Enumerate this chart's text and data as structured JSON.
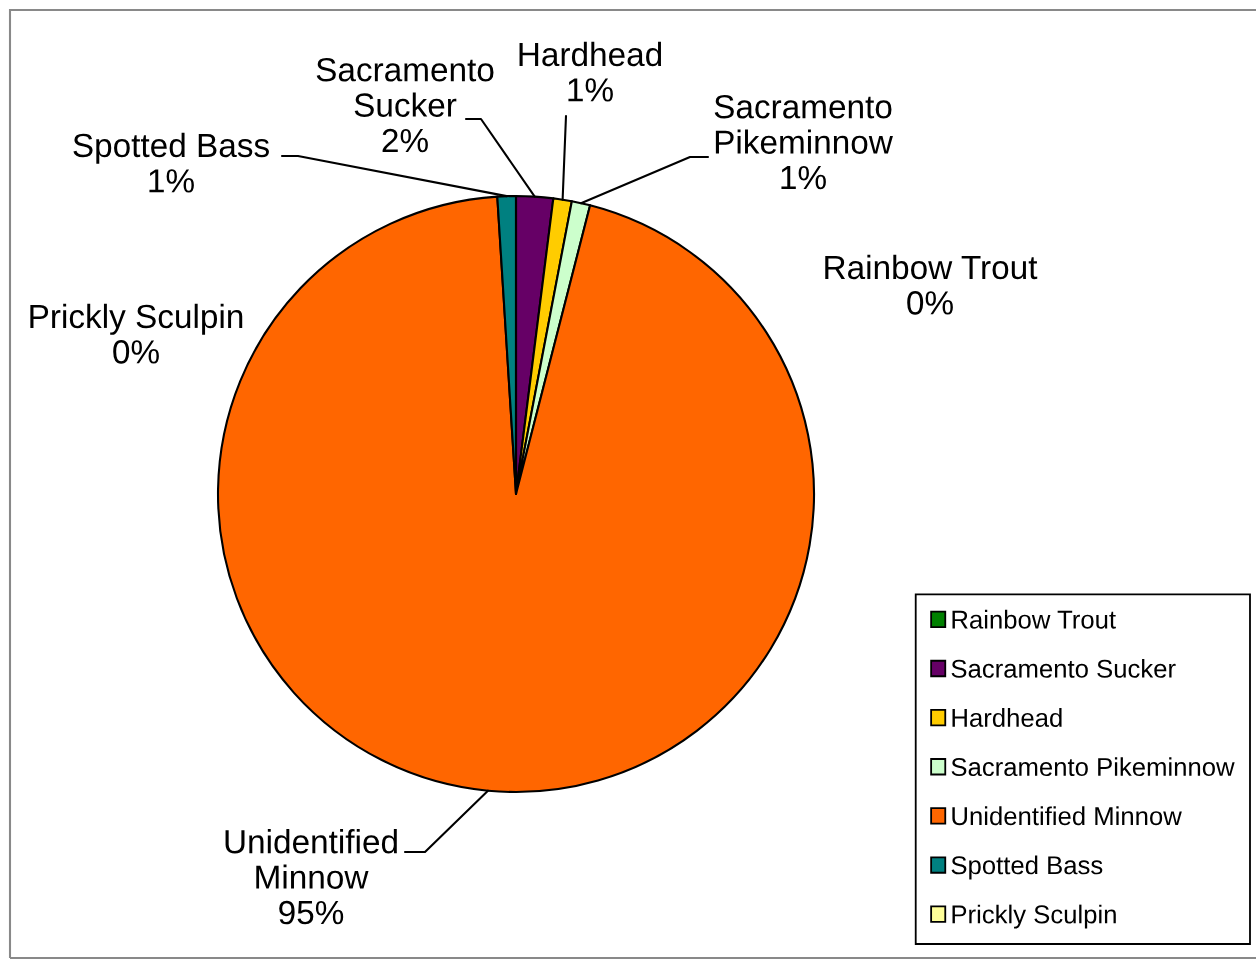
{
  "chart_data": {
    "type": "pie",
    "categories": [
      "Rainbow Trout",
      "Sacramento Sucker",
      "Hardhead",
      "Sacramento Pikeminnow",
      "Unidentified Minnow",
      "Spotted Bass",
      "Prickly Sculpin"
    ],
    "values": [
      0,
      2,
      1,
      1,
      95,
      1,
      0
    ],
    "colors": [
      "#008000",
      "#660066",
      "#ffcc00",
      "#ccffcc",
      "#ff6600",
      "#008080",
      "#ffff99"
    ],
    "value_labels": [
      "0%",
      "2%",
      "1%",
      "1%",
      "95%",
      "1%",
      "0%"
    ],
    "legend": "bottom right"
  }
}
